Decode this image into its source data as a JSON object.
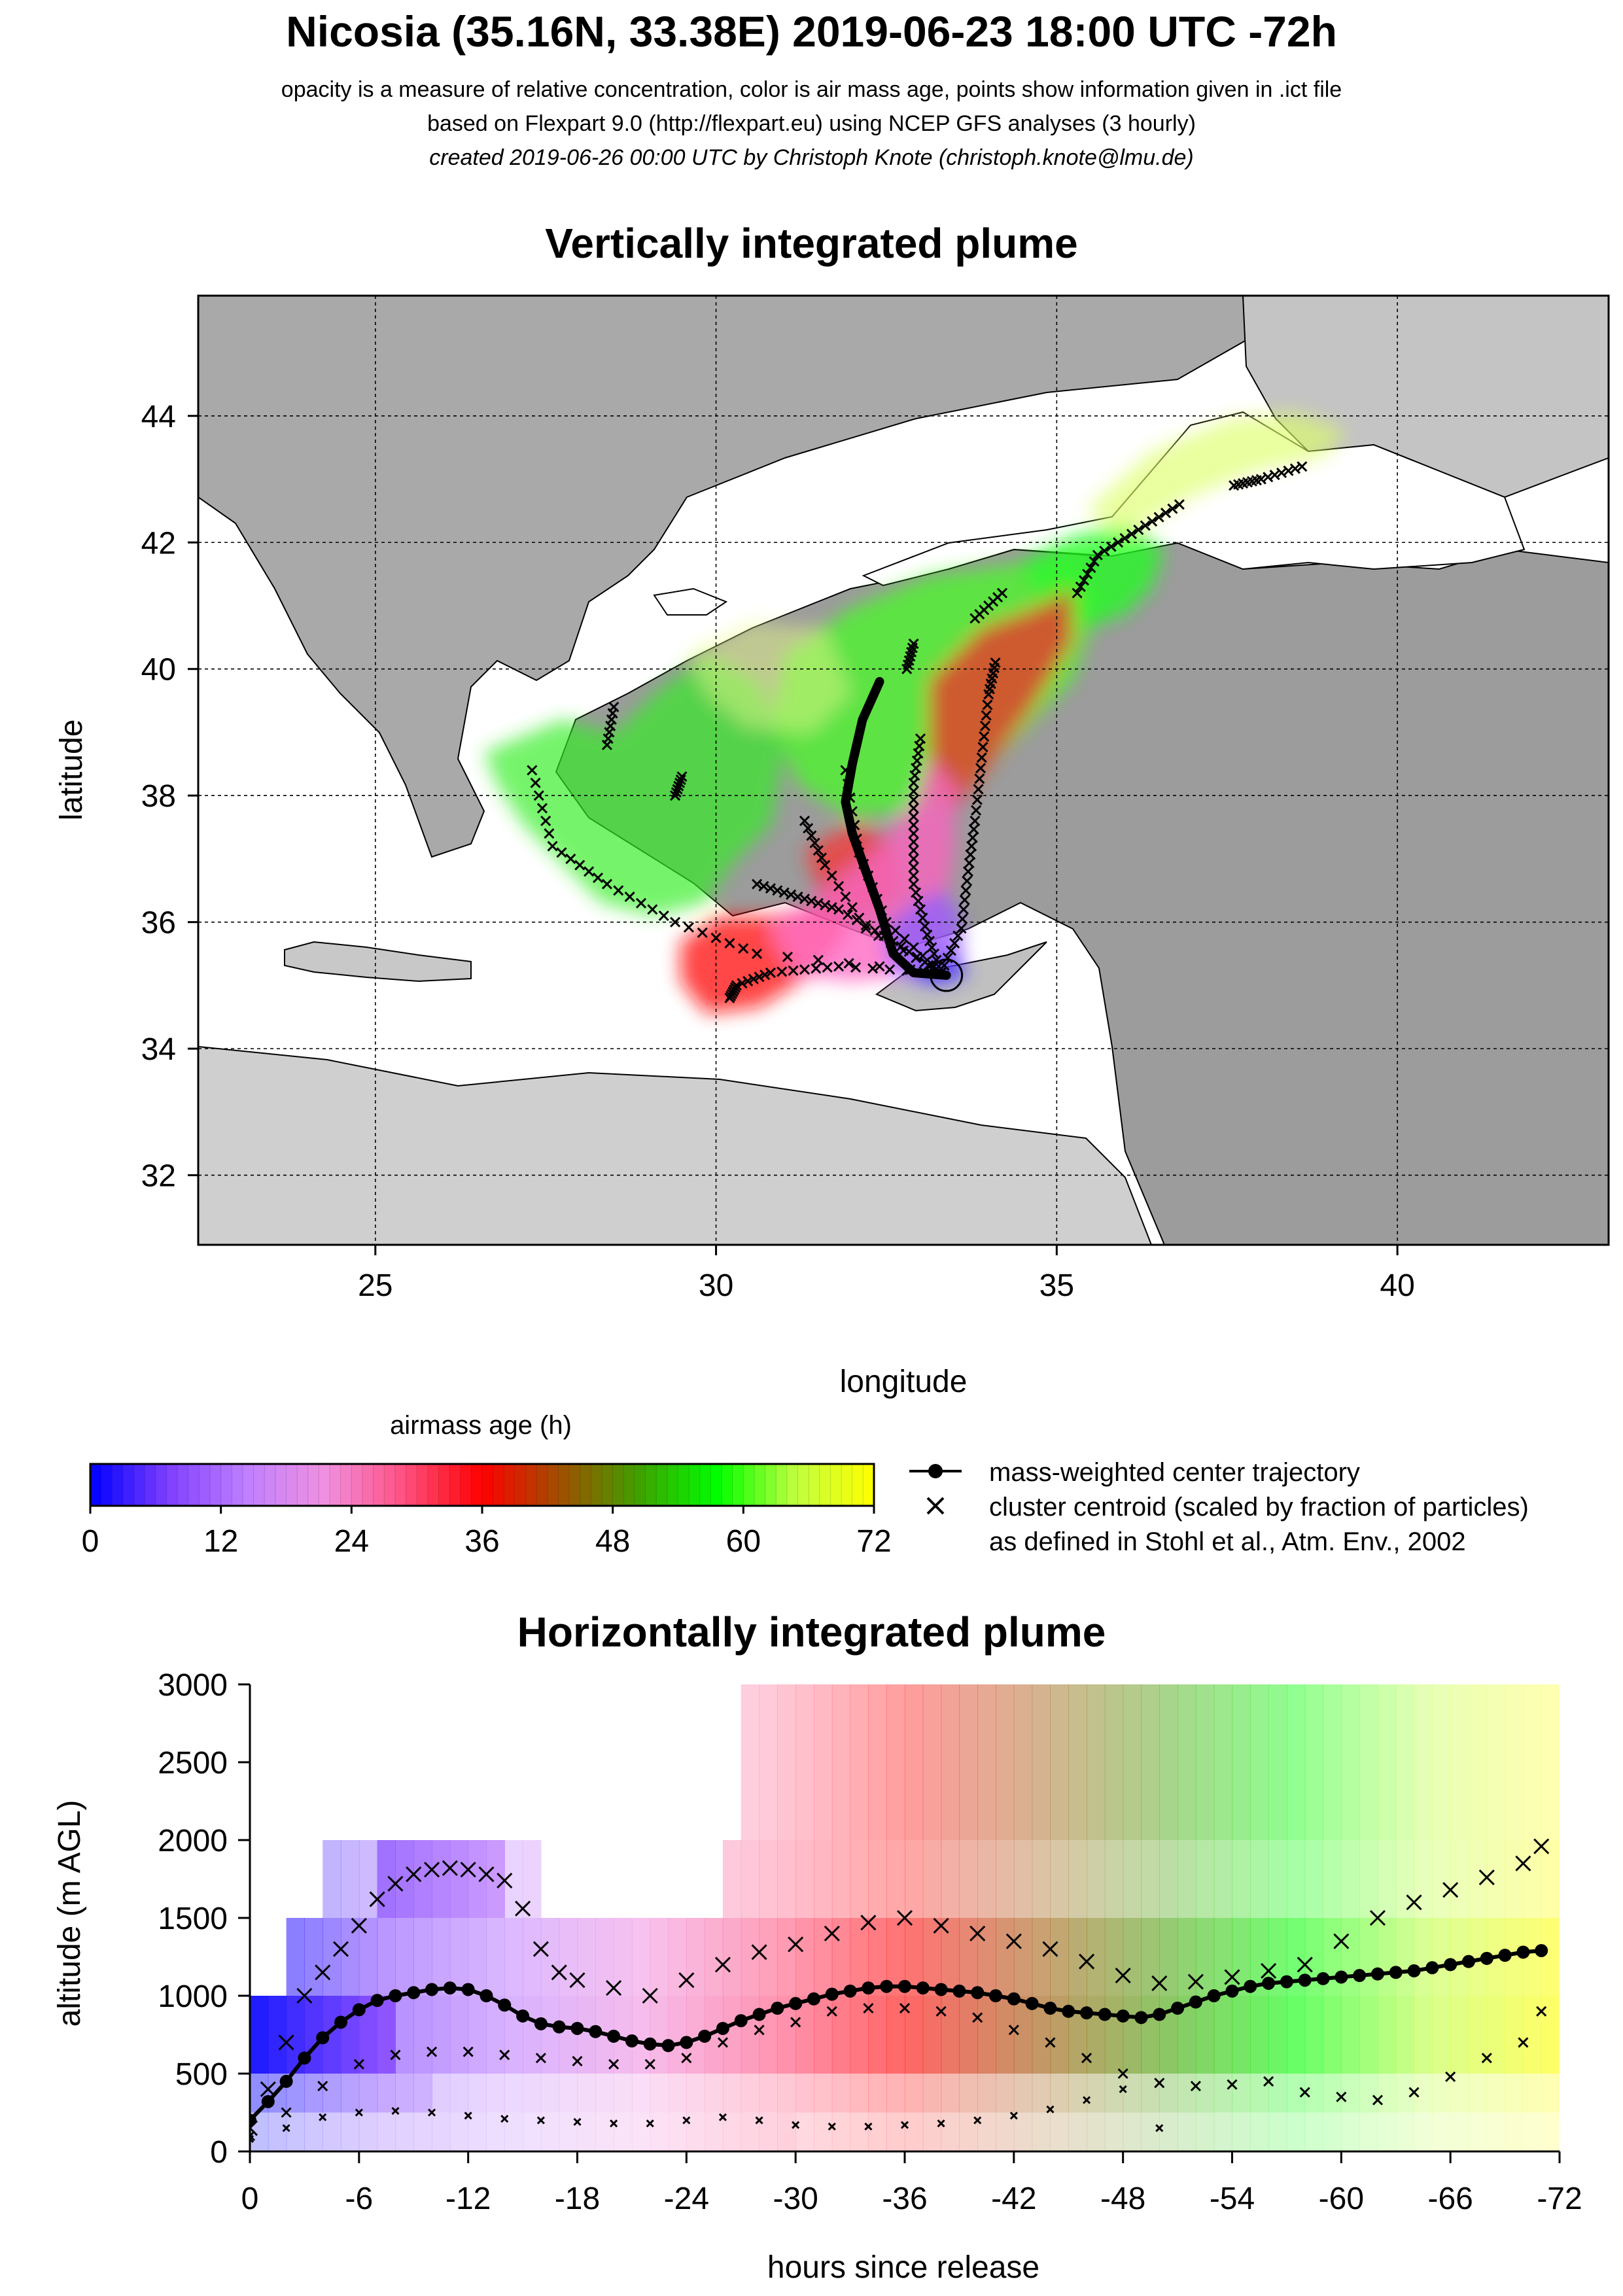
{
  "header": {
    "title": "Nicosia (35.16N, 33.38E) 2019-06-23 18:00 UTC -72h",
    "subtitle_1": "opacity is a measure of relative concentration, color is air mass age, points show information given in .ict file",
    "subtitle_2": "based on Flexpart 9.0 (http://flexpart.eu) using NCEP GFS analyses (3 hourly)",
    "subtitle_3": "created 2019-06-26 00:00 UTC by Christoph Knote (christoph.knote@lmu.de)"
  },
  "colors": {
    "age_scale": [
      "#0000ff",
      "#7f3fff",
      "#c080ff",
      "#f090e0",
      "#ff5080",
      "#ff0000",
      "#a05000",
      "#40a000",
      "#00ff00",
      "#c0ff40",
      "#ffff00"
    ],
    "land": "#b8b8b8",
    "sea": "#ffffff",
    "marker": "#000000"
  },
  "chart_data": [
    {
      "type": "map",
      "title": "Vertically integrated plume",
      "xlabel": "longitude",
      "ylabel": "latitude",
      "xlim": [
        22.4,
        43.1
      ],
      "ylim": [
        30.9,
        45.9
      ],
      "x_ticks": [
        25,
        30,
        35,
        40
      ],
      "y_ticks": [
        32,
        34,
        36,
        38,
        40,
        42,
        44
      ],
      "grid": true,
      "release": {
        "lon": 33.38,
        "lat": 35.16
      },
      "center_trajectory": [
        {
          "lon": 33.38,
          "lat": 35.16
        },
        {
          "lon": 32.9,
          "lat": 35.2
        },
        {
          "lon": 32.6,
          "lat": 35.5
        },
        {
          "lon": 32.4,
          "lat": 36.2
        },
        {
          "lon": 32.2,
          "lat": 36.8
        },
        {
          "lon": 32.0,
          "lat": 37.4
        },
        {
          "lon": 31.9,
          "lat": 37.9
        },
        {
          "lon": 32.0,
          "lat": 38.5
        },
        {
          "lon": 32.15,
          "lat": 39.2
        },
        {
          "lon": 32.4,
          "lat": 39.8
        }
      ],
      "cluster_tracks": [
        [
          [
            33.3,
            35.2
          ],
          [
            33.1,
            35.8
          ],
          [
            32.9,
            36.6
          ],
          [
            32.9,
            37.4
          ],
          [
            32.9,
            38.2
          ],
          [
            33.0,
            38.9
          ]
        ],
        [
          [
            33.3,
            35.2
          ],
          [
            33.6,
            35.9
          ],
          [
            33.7,
            36.8
          ],
          [
            33.8,
            37.6
          ],
          [
            33.9,
            38.6
          ],
          [
            34.0,
            39.6
          ],
          [
            34.1,
            40.1
          ]
        ],
        [
          [
            33.3,
            35.2
          ],
          [
            32.6,
            35.7
          ],
          [
            31.8,
            36.2
          ],
          [
            31.2,
            36.4
          ],
          [
            30.6,
            36.6
          ]
        ],
        [
          [
            33.3,
            35.2
          ],
          [
            31.8,
            35.3
          ],
          [
            30.8,
            35.2
          ],
          [
            30.3,
            35.0
          ],
          [
            30.2,
            34.8
          ]
        ],
        [
          [
            33.3,
            35.2
          ],
          [
            32.2,
            35.9
          ],
          [
            31.6,
            36.9
          ],
          [
            31.3,
            37.6
          ]
        ],
        [
          [
            33.3,
            35.2
          ],
          [
            30.6,
            35.5
          ],
          [
            29.4,
            36.0
          ],
          [
            28.4,
            36.6
          ],
          [
            27.6,
            37.2
          ],
          [
            27.3,
            38.4
          ]
        ],
        [
          [
            33.3,
            35.2
          ],
          [
            32.5,
            36.0
          ],
          [
            32.1,
            37.1
          ],
          [
            31.9,
            38.4
          ]
        ],
        [
          [
            35.3,
            41.2
          ],
          [
            35.6,
            41.8
          ],
          [
            36.2,
            42.2
          ],
          [
            36.8,
            42.6
          ]
        ],
        [
          [
            37.6,
            42.9
          ],
          [
            38.0,
            43.0
          ],
          [
            38.6,
            43.2
          ]
        ],
        [
          [
            33.8,
            40.8
          ],
          [
            34.2,
            41.2
          ]
        ],
        [
          [
            32.8,
            40.0
          ],
          [
            32.9,
            40.4
          ]
        ],
        [
          [
            29.4,
            38.0
          ],
          [
            29.5,
            38.3
          ]
        ],
        [
          [
            28.4,
            38.8
          ],
          [
            28.5,
            39.4
          ]
        ]
      ]
    },
    {
      "type": "colorbar",
      "title": "airmass age (h)",
      "range": [
        0,
        72
      ],
      "ticks": [
        0,
        12,
        24,
        36,
        48,
        60,
        72
      ]
    },
    {
      "type": "legend",
      "entries": [
        {
          "symbol": "line-dot",
          "label": "mass-weighted center trajectory"
        },
        {
          "symbol": "cross",
          "label": "cluster centroid (scaled by fraction of particles)"
        },
        {
          "symbol": "none",
          "label": "as defined in Stohl et al., Atm. Env., 2002"
        }
      ]
    },
    {
      "type": "line",
      "title": "Horizontally integrated plume",
      "xlabel": "hours since release",
      "ylabel": "altitude (m AGL)",
      "xlim": [
        0,
        -72
      ],
      "ylim": [
        0,
        3000
      ],
      "x_ticks": [
        0,
        -6,
        -12,
        -18,
        -24,
        -30,
        -36,
        -42,
        -48,
        -54,
        -60,
        -66,
        -72
      ],
      "x_tick_labels": [
        "0",
        "-6",
        "-12",
        "-18",
        "-24",
        "-30",
        "-36",
        "-42",
        "-48",
        "-54",
        "-60",
        "-66",
        "-72"
      ],
      "y_ticks": [
        0,
        500,
        1000,
        1500,
        2000,
        2500,
        3000
      ],
      "series": [
        {
          "type": "line-dot",
          "x": [
            0,
            -1,
            -2,
            -3,
            -4,
            -5,
            -6,
            -7,
            -8,
            -9,
            -10,
            -11,
            -12,
            -13,
            -14,
            -15,
            -16,
            -17,
            -18,
            -19,
            -20,
            -21,
            -22,
            -23,
            -24,
            -25,
            -26,
            -27,
            -28,
            -29,
            -30,
            -31,
            -32,
            -33,
            -34,
            -35,
            -36,
            -37,
            -38,
            -39,
            -40,
            -41,
            -42,
            -43,
            -44,
            -45,
            -46,
            -47,
            -48,
            -49,
            -50,
            -51,
            -52,
            -53,
            -54,
            -55,
            -56,
            -57,
            -58,
            -59,
            -60,
            -61,
            -62,
            -63,
            -64,
            -65,
            -66,
            -67,
            -68,
            -69,
            -70,
            -71
          ],
          "y": [
            200,
            320,
            450,
            600,
            730,
            830,
            910,
            970,
            1000,
            1020,
            1040,
            1050,
            1040,
            1000,
            940,
            870,
            820,
            800,
            790,
            770,
            740,
            710,
            690,
            680,
            700,
            740,
            790,
            840,
            880,
            920,
            950,
            980,
            1010,
            1030,
            1050,
            1060,
            1060,
            1050,
            1040,
            1030,
            1020,
            1000,
            980,
            950,
            920,
            900,
            890,
            880,
            870,
            860,
            880,
            920,
            960,
            1000,
            1030,
            1060,
            1080,
            1090,
            1100,
            1110,
            1120,
            1130,
            1140,
            1150,
            1160,
            1180,
            1200,
            1220,
            1240,
            1260,
            1280,
            1290
          ]
        },
        {
          "type": "cross",
          "x": [
            0,
            -1,
            -2,
            -3,
            -4,
            -5,
            -6,
            -7,
            -8,
            -9,
            -10,
            -11,
            -12,
            -13,
            -14,
            -15,
            -16,
            -17,
            -18,
            -20,
            -22,
            -24,
            -26,
            -28,
            -30,
            -32,
            -34,
            -36,
            -38,
            -40,
            -42,
            -44,
            -46,
            -48,
            -50,
            -52,
            -54,
            -56,
            -58,
            -60,
            -62,
            -64,
            -66,
            -68,
            -70,
            -71
          ],
          "y": [
            150,
            400,
            700,
            1000,
            1150,
            1300,
            1450,
            1620,
            1720,
            1780,
            1810,
            1820,
            1810,
            1780,
            1740,
            1560,
            1300,
            1150,
            1100,
            1050,
            1000,
            1100,
            1200,
            1280,
            1330,
            1400,
            1470,
            1500,
            1450,
            1400,
            1350,
            1300,
            1220,
            1130,
            1080,
            1090,
            1120,
            1160,
            1200,
            1350,
            1500,
            1600,
            1680,
            1760,
            1850,
            1960
          ]
        },
        {
          "type": "cross",
          "x": [
            0,
            -2,
            -4,
            -6,
            -8,
            -10,
            -12,
            -14,
            -16,
            -18,
            -20,
            -22,
            -24,
            -26,
            -28,
            -30,
            -32,
            -34,
            -36,
            -38,
            -40,
            -42,
            -44,
            -46,
            -48,
            -50,
            -52,
            -54,
            -56,
            -58,
            -60,
            -62,
            -64,
            -66,
            -68,
            -70,
            -71
          ],
          "y": [
            100,
            250,
            420,
            560,
            620,
            640,
            640,
            620,
            600,
            580,
            560,
            560,
            600,
            700,
            780,
            830,
            900,
            920,
            920,
            900,
            860,
            780,
            700,
            600,
            500,
            440,
            420,
            430,
            450,
            380,
            350,
            330,
            380,
            480,
            600,
            700,
            900
          ]
        },
        {
          "type": "cross",
          "x": [
            0,
            -2,
            -4,
            -6,
            -8,
            -10,
            -12,
            -14,
            -16,
            -18,
            -20,
            -22,
            -24,
            -26,
            -28,
            -30,
            -32,
            -34,
            -36,
            -38,
            -40,
            -42,
            -44,
            -46,
            -48,
            -50
          ],
          "y": [
            80,
            150,
            220,
            250,
            260,
            250,
            230,
            210,
            200,
            190,
            180,
            180,
            200,
            220,
            200,
            170,
            160,
            160,
            170,
            180,
            200,
            230,
            270,
            330,
            400,
            150
          ]
        }
      ]
    }
  ]
}
